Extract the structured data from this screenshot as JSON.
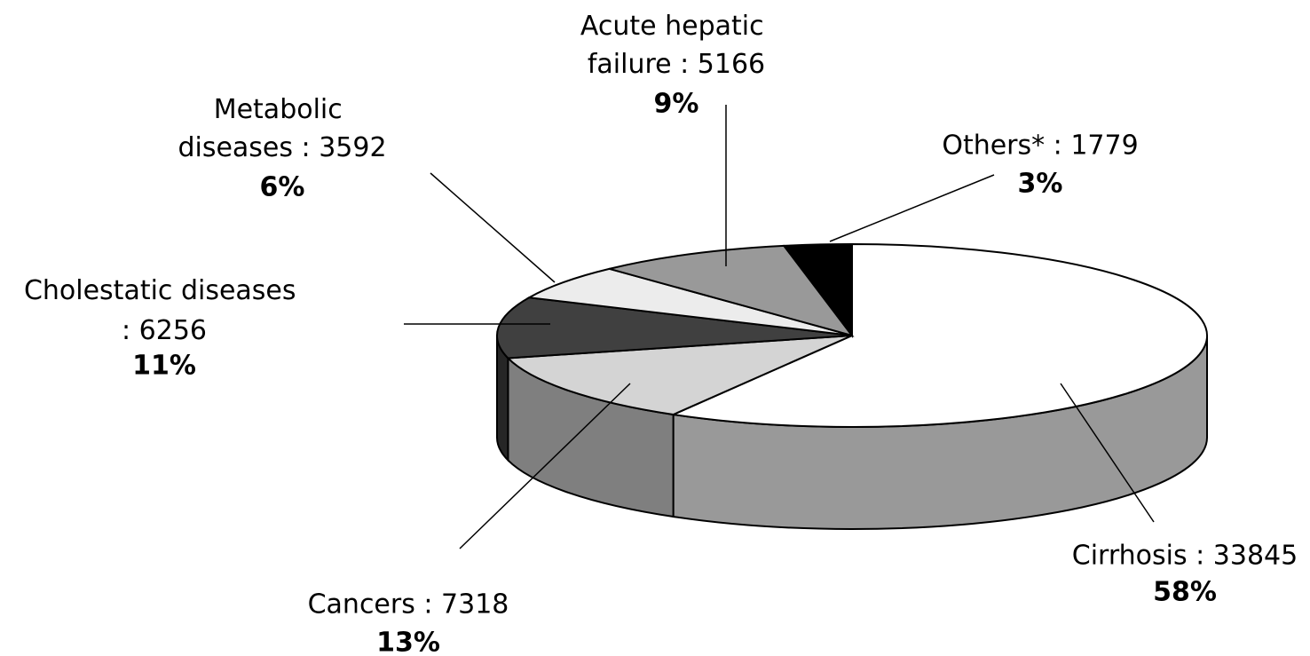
{
  "chart_data": {
    "type": "pie3d",
    "values": [
      33845,
      7318,
      6256,
      3592,
      5166,
      1779
    ],
    "value_labels": [
      "Cirrhosis : 33845",
      "Cancers : 7318",
      "Cholestatic diseases : 6256",
      "Metabolic diseases : 3592",
      "Acute hepatic failure : 5166",
      "Others* : 1779"
    ],
    "percents": [
      58,
      13,
      11,
      6,
      9,
      3
    ],
    "percent_labels": [
      "58%",
      "13%",
      "11%",
      "6%",
      "9%",
      "3%"
    ],
    "colors": [
      "#ffffff",
      "#d4d4d4",
      "#404040",
      "#ececec",
      "#999999",
      "#000000"
    ]
  }
}
